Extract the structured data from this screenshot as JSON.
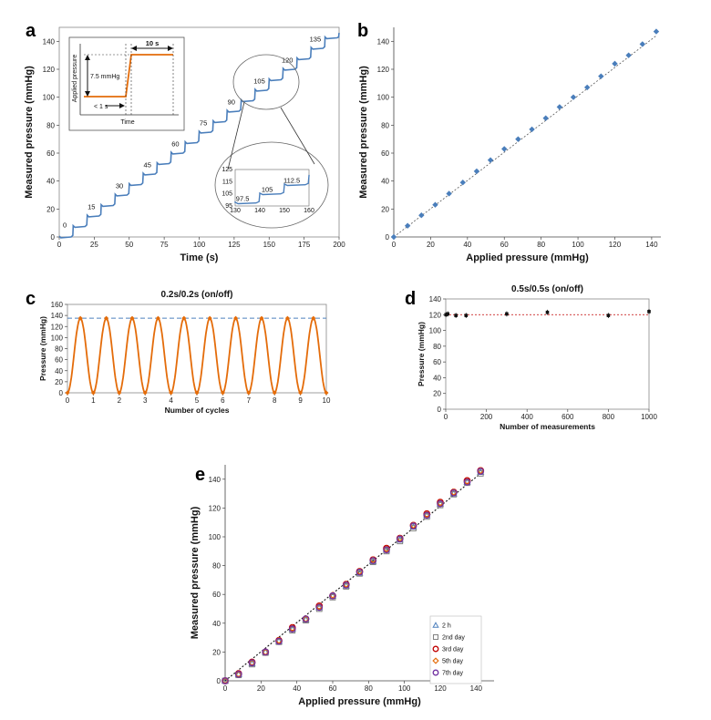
{
  "colors": {
    "blue": "#4a7ebb",
    "orange": "#e46c0a",
    "dashblue": "#4f81bd",
    "red": "#c00000",
    "purple": "#7030a0",
    "gray": "#7f7f7f",
    "frame": "#888888"
  },
  "chart_data": [
    {
      "panel": "a",
      "type": "line",
      "xlabel": "Time (s)",
      "ylabel": "Measured pressure (mmHg)",
      "xlim": [
        0,
        200
      ],
      "ylim": [
        0,
        150
      ],
      "xticks": [
        "0",
        "25",
        "50",
        "75",
        "100",
        "125",
        "150",
        "175",
        "200"
      ],
      "yticks": [
        "0",
        "20",
        "40",
        "60",
        "80",
        "100",
        "120",
        "140"
      ],
      "step_levels": [
        0,
        7.5,
        15,
        22.5,
        30,
        37.5,
        45,
        52.5,
        60,
        67.5,
        75,
        82.5,
        90,
        97.5,
        105,
        112.5,
        120,
        127.5,
        135,
        142.5,
        146
      ],
      "step_times": [
        0,
        10,
        20,
        30,
        40,
        50,
        60,
        70,
        80,
        90,
        100,
        110,
        120,
        130,
        140,
        150,
        160,
        170,
        180,
        190,
        200
      ],
      "step_labels": [
        {
          "text": "0",
          "x": 4,
          "y": 7
        },
        {
          "text": "15",
          "x": 23,
          "y": 20
        },
        {
          "text": "30",
          "x": 43,
          "y": 35
        },
        {
          "text": "45",
          "x": 63,
          "y": 50
        },
        {
          "text": "60",
          "x": 83,
          "y": 65
        },
        {
          "text": "75",
          "x": 103,
          "y": 80
        },
        {
          "text": "90",
          "x": 123,
          "y": 95
        },
        {
          "text": "105",
          "x": 143,
          "y": 110
        },
        {
          "text": "120",
          "x": 163,
          "y": 125
        },
        {
          "text": "135",
          "x": 183,
          "y": 140
        }
      ],
      "inset_schematic": {
        "ylabel": "Applied pressure",
        "xlabel": "Time",
        "step_label": "7.5 mmHg",
        "duration_label": "10 s",
        "rise_label": "< 1 s"
      },
      "inset_zoom": {
        "xlim": [
          130,
          160
        ],
        "ylim": [
          95,
          125
        ],
        "xticks": [
          "130",
          "140",
          "150",
          "160"
        ],
        "yticks": [
          "95",
          "105",
          "115",
          "125"
        ],
        "labels": [
          {
            "text": "97.5",
            "x": 133,
            "y": 99
          },
          {
            "text": "105",
            "x": 143,
            "y": 106.5
          },
          {
            "text": "112.5",
            "x": 153,
            "y": 114
          }
        ]
      }
    },
    {
      "panel": "b",
      "type": "scatter",
      "xlabel": "Applied pressure (mmHg)",
      "ylabel": "Measured pressure (mmHg)",
      "xlim": [
        0,
        145
      ],
      "ylim": [
        0,
        150
      ],
      "xticks": [
        "0",
        "20",
        "40",
        "60",
        "80",
        "100",
        "120",
        "140"
      ],
      "yticks": [
        "0",
        "20",
        "40",
        "60",
        "80",
        "100",
        "120",
        "140"
      ],
      "x": [
        0,
        7.5,
        15,
        22.5,
        30,
        37.5,
        45,
        52.5,
        60,
        67.5,
        75,
        82.5,
        90,
        97.5,
        105,
        112.5,
        120,
        127.5,
        135,
        142.5
      ],
      "y": [
        0,
        8,
        15.5,
        23,
        31,
        39,
        47,
        55,
        63,
        70,
        77,
        85,
        93,
        100,
        107,
        115,
        124,
        130,
        138,
        147
      ],
      "fit": [
        [
          0,
          0
        ],
        [
          142.5,
          144
        ]
      ]
    },
    {
      "panel": "c",
      "type": "line",
      "title": "0.2s/0.2s (on/off)",
      "xlabel": "Number of cycles",
      "ylabel": "Pressure (mmHg)",
      "xlim": [
        0,
        10
      ],
      "ylim": [
        0,
        160
      ],
      "xticks": [
        "0",
        "1",
        "2",
        "3",
        "4",
        "5",
        "6",
        "7",
        "8",
        "9",
        "10"
      ],
      "yticks": [
        "0",
        "20",
        "40",
        "60",
        "80",
        "100",
        "120",
        "140",
        "160"
      ],
      "amplitude": 135,
      "reference_line": 135,
      "peaks_at": [
        0.5,
        1.5,
        2.5,
        3.5,
        4.5,
        5.5,
        6.5,
        7.5,
        8.5,
        9.5
      ],
      "zeros_at": [
        0,
        1,
        2,
        3,
        4,
        5,
        6,
        7,
        8,
        9,
        10
      ]
    },
    {
      "panel": "d",
      "type": "scatter",
      "title": "0.5s/0.5s (on/off)",
      "xlabel": "Number of measurements",
      "ylabel": "Pressure (mmHg)",
      "xlim": [
        0,
        1000
      ],
      "ylim": [
        0,
        140
      ],
      "xticks": [
        "0",
        "200",
        "400",
        "600",
        "800",
        "1000"
      ],
      "yticks": [
        "0",
        "20",
        "40",
        "60",
        "80",
        "100",
        "120",
        "140"
      ],
      "x": [
        1,
        10,
        50,
        100,
        300,
        500,
        800,
        1000
      ],
      "y": [
        120,
        121,
        119,
        119,
        121,
        123,
        119,
        124
      ],
      "reference_line": 120
    },
    {
      "panel": "e",
      "type": "scatter",
      "xlabel": "Applied pressure (mmHg)",
      "ylabel": "Measured pressure (mmHg)",
      "xlim": [
        0,
        150
      ],
      "ylim": [
        0,
        150
      ],
      "xticks": [
        "0",
        "20",
        "40",
        "60",
        "80",
        "100",
        "120",
        "140"
      ],
      "yticks": [
        "0",
        "20",
        "40",
        "60",
        "80",
        "100",
        "120",
        "140"
      ],
      "x": [
        0,
        7.5,
        15,
        22.5,
        30,
        37.5,
        45,
        52.5,
        60,
        67.5,
        75,
        82.5,
        90,
        97.5,
        105,
        112.5,
        120,
        127.5,
        135,
        142.5
      ],
      "series": [
        {
          "name": "2 h",
          "marker": "triangle",
          "color": "#4f81bd",
          "y": [
            0,
            4.5,
            12,
            20,
            27.5,
            36,
            42.5,
            51,
            59,
            66,
            75,
            83,
            91,
            98,
            107,
            115,
            123,
            130,
            138,
            145
          ]
        },
        {
          "name": "2nd day",
          "marker": "square",
          "color": "#7f7f7f",
          "y": [
            0,
            4,
            11.5,
            19.5,
            27,
            35,
            42,
            50,
            58,
            65.5,
            74.5,
            82.5,
            90,
            97,
            106,
            114,
            122,
            129.5,
            137.5,
            144
          ]
        },
        {
          "name": "3rd day",
          "marker": "circle",
          "color": "#c00000",
          "y": [
            0,
            5,
            13,
            20,
            28,
            37,
            43,
            52,
            59,
            67,
            76,
            84,
            92,
            99,
            108,
            116,
            124,
            131,
            139,
            146
          ]
        },
        {
          "name": "5th day",
          "marker": "diamond",
          "color": "#e46c0a",
          "y": [
            0,
            4.5,
            12.5,
            20,
            28,
            36.5,
            43,
            51.5,
            59.5,
            67,
            76,
            84,
            91.5,
            99,
            108,
            115.5,
            123.5,
            131,
            138.5,
            146
          ]
        },
        {
          "name": "7th day",
          "marker": "circle",
          "color": "#7030a0",
          "y": [
            0,
            4.5,
            12.5,
            20,
            27.5,
            36,
            43,
            51,
            59,
            66.5,
            75.5,
            83.5,
            91,
            98.5,
            107.5,
            115,
            123,
            130.5,
            138,
            145.5
          ]
        }
      ],
      "fit": [
        [
          0,
          0
        ],
        [
          142.5,
          144
        ]
      ]
    }
  ],
  "panel_labels": {
    "a": "a",
    "b": "b",
    "c": "c",
    "d": "d",
    "e": "e"
  }
}
